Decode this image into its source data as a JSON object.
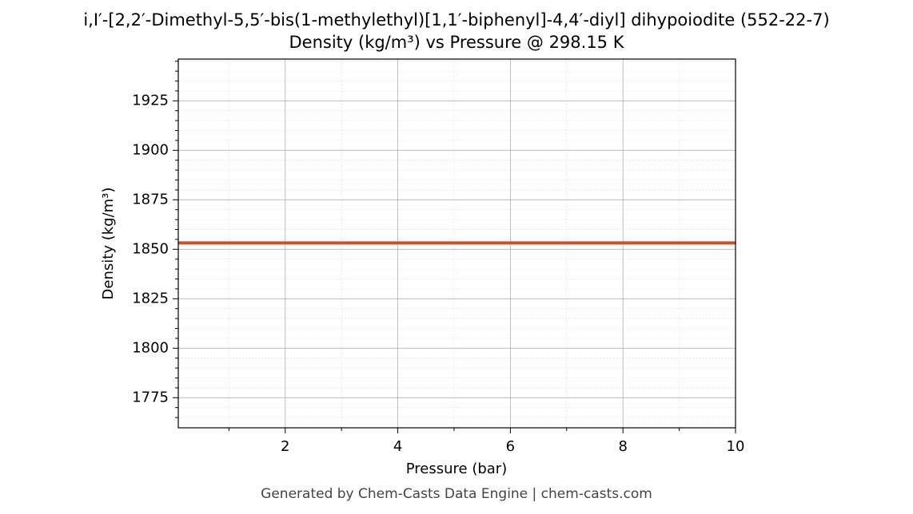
{
  "chart_data": {
    "type": "line",
    "title": "i,I′-[2,2′-Dimethyl-5,5′-bis(1-methylethyl)[1,1′-biphenyl]-4,4′-diyl] dihypoiodite (552-22-7)",
    "subtitle": "Density (kg/m³) vs Pressure @ 298.15 K",
    "x_label": "Pressure (bar)",
    "y_label": "Density (kg/m³)",
    "footer": "Generated by Chem-Casts Data Engine | chem-casts.com",
    "x": [
      0.1,
      10
    ],
    "series": [
      {
        "name": "Density",
        "color": "#c8522a",
        "values": [
          1853.2,
          1853.2
        ]
      }
    ],
    "xlim": [
      0.1,
      10
    ],
    "xticks": [
      2,
      4,
      6,
      8,
      10
    ],
    "xminorticks": [
      1,
      3,
      5,
      7,
      9
    ],
    "ylim": [
      1759.8,
      1946.1
    ],
    "yticks": [
      1775,
      1800,
      1825,
      1850,
      1875,
      1900,
      1925
    ],
    "yminorticks": [
      1765,
      1770,
      1780,
      1785,
      1790,
      1795,
      1805,
      1810,
      1815,
      1820,
      1830,
      1835,
      1840,
      1845,
      1855,
      1860,
      1865,
      1870,
      1880,
      1885,
      1890,
      1895,
      1905,
      1910,
      1915,
      1920,
      1930,
      1935,
      1940,
      1945
    ],
    "grid": true
  }
}
